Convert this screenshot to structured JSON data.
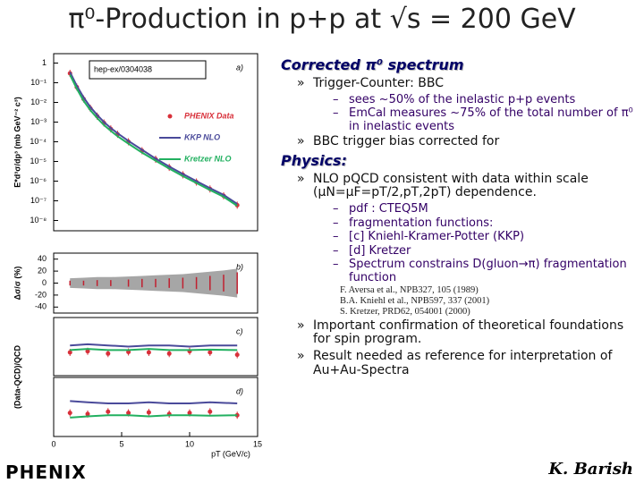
{
  "slide": {
    "title": "π⁰-Production in p+p at √s = 200 GeV",
    "sections": [
      {
        "heading": "Corrected π⁰ spectrum",
        "items": [
          {
            "text": "Trigger-Counter: BBC",
            "sub": [
              "sees ~50% of the inelastic p+p events",
              "EmCal measures ~75% of the total number of π⁰ in inelastic events"
            ]
          },
          {
            "text": "BBC trigger bias corrected for"
          }
        ]
      },
      {
        "heading": "Physics:",
        "items": [
          {
            "text": "NLO pQCD consistent with data within scale (μN=μF=pT/2,pT,2pT) dependence.",
            "sub": [
              "pdf : CTEQ5M",
              "fragmentation functions:",
              "[c] Kniehl-Kramer-Potter (KKP)",
              "[d] Kretzer",
              "Spectrum constrains D(gluon→π) fragmentation function"
            ]
          }
        ]
      }
    ],
    "references": [
      "F. Aversa et al., NPB327, 105 (1989)",
      "B.A. Kniehl et al., NPB597, 337 (2001)",
      "S. Kretzer, PRD62, 054001 (2000)"
    ],
    "closing": [
      "Important confirmation of theoretical foundations for spin program.",
      "Result needed as reference for interpretation of Au+Au-Spectra"
    ],
    "logo": "PHENIX",
    "author": "K. Barish"
  },
  "chart_data": [
    {
      "type": "line",
      "log_y": true,
      "ylabel": "E*d³σ/dp³ (mb GeV⁻² c³)",
      "annotations": [
        "a)",
        "hep-ex/0304038"
      ],
      "legend": "center right",
      "xlim": [
        0,
        15
      ],
      "ylim": [
        3e-09,
        3
      ],
      "yticks": [
        1,
        {
          "value": 0.1,
          "label": "10⁻¹"
        },
        {
          "value": 0.01,
          "label": "10⁻²"
        },
        {
          "value": 0.001,
          "label": "10⁻³"
        },
        {
          "value": 0.0001,
          "label": "10⁻⁴"
        },
        {
          "value": 1e-05,
          "label": "10⁻⁵"
        },
        {
          "value": 1e-06,
          "label": "10⁻⁶"
        },
        {
          "value": 1e-07,
          "label": "10⁻⁷"
        },
        {
          "value": 1e-08,
          "label": "10⁻⁸"
        }
      ],
      "x": [
        1.2,
        1.7,
        2.2,
        2.7,
        3.2,
        3.7,
        4.2,
        4.7,
        5.5,
        6.5,
        7.5,
        8.5,
        9.5,
        10.5,
        11.5,
        12.5,
        13.5
      ],
      "series": [
        {
          "name": "PHENIX Data",
          "mode": "markers",
          "color": "#d8303a",
          "values": [
            0.3,
            0.06,
            0.015,
            0.005,
            0.002,
            0.0009,
            0.00045,
            0.00024,
            0.0001,
            3.5e-05,
            1.3e-05,
            5e-06,
            2.1e-06,
            9e-07,
            4e-07,
            1.8e-07,
            6e-08
          ]
        },
        {
          "name": "KKP NLO",
          "mode": "line",
          "color": "#4a4a9a",
          "values": [
            0.35,
            0.07,
            0.018,
            0.0058,
            0.0023,
            0.001,
            0.0005,
            0.00027,
            0.00011,
            3.9e-05,
            1.4e-05,
            5.5e-06,
            2.3e-06,
            1e-06,
            4.4e-07,
            2e-07,
            7e-08
          ]
        },
        {
          "name": "Kretzer NLO",
          "mode": "line",
          "color": "#22b060",
          "values": [
            0.25,
            0.05,
            0.012,
            0.004,
            0.0016,
            0.0007,
            0.00036,
            0.00019,
            8e-05,
            2.8e-05,
            1.1e-05,
            4.3e-06,
            1.8e-06,
            8e-07,
            3.5e-07,
            1.6e-07,
            5.5e-08
          ]
        }
      ]
    },
    {
      "type": "band",
      "ylabel": "Δσ/σ (%)",
      "annotations": [
        "b)"
      ],
      "xlim": [
        0,
        15
      ],
      "ylim": [
        -50,
        50
      ],
      "yticks": [
        40,
        20,
        0,
        -20,
        -40
      ],
      "color": "#909090",
      "x": [
        1.2,
        2.2,
        3.2,
        4.2,
        5.5,
        6.5,
        7.5,
        8.5,
        9.5,
        10.5,
        11.5,
        12.5,
        13.5
      ],
      "upper": [
        8,
        9,
        10,
        10,
        11,
        12,
        13,
        14,
        15,
        17,
        19,
        21,
        24
      ],
      "lower": [
        -8,
        -9,
        -10,
        -10,
        -11,
        -12,
        -13,
        -14,
        -15,
        -17,
        -19,
        -21,
        -24
      ],
      "values": [
        0,
        0,
        0,
        0,
        0,
        0,
        0,
        0,
        0,
        0,
        0,
        0,
        0
      ],
      "errors": [
        4,
        4,
        5,
        5,
        6,
        7,
        7,
        8,
        9,
        10,
        12,
        14,
        18
      ]
    },
    {
      "type": "line",
      "ylabel": "(Data-QCD)/QCD",
      "annotations": [
        "c)"
      ],
      "xlim": [
        0,
        15
      ],
      "ylim": [
        -1,
        1.5
      ],
      "x": [
        1.2,
        2.5,
        4,
        5.5,
        7,
        8.5,
        10,
        11.5,
        13.5
      ],
      "series": [
        {
          "mode": "markers",
          "color": "#d8303a",
          "values": [
            0,
            0.05,
            -0.05,
            0.02,
            0,
            -0.05,
            0.05,
            0,
            -0.1
          ]
        },
        {
          "mode": "line",
          "color": "#4a4a9a",
          "values": [
            0.3,
            0.35,
            0.3,
            0.25,
            0.3,
            0.3,
            0.25,
            0.3,
            0.3
          ]
        },
        {
          "mode": "line",
          "color": "#22b060",
          "values": [
            0.1,
            0.15,
            0.1,
            0.1,
            0.15,
            0.1,
            0.1,
            0.12,
            0.1
          ]
        }
      ]
    },
    {
      "type": "line",
      "annotations": [
        "d)"
      ],
      "xlim": [
        0,
        15
      ],
      "ylim": [
        -1,
        1.5
      ],
      "xticks": [
        0,
        5,
        10,
        15
      ],
      "xlabel": "pT (GeV/c)",
      "x": [
        1.2,
        2.5,
        4,
        5.5,
        7,
        8.5,
        10,
        11.5,
        13.5
      ],
      "series": [
        {
          "mode": "markers",
          "color": "#d8303a",
          "values": [
            0,
            -0.05,
            0.05,
            0,
            0.02,
            -0.05,
            0,
            0.05,
            -0.1
          ]
        },
        {
          "mode": "line",
          "color": "#4a4a9a",
          "values": [
            0.5,
            0.45,
            0.4,
            0.4,
            0.45,
            0.4,
            0.4,
            0.45,
            0.4
          ]
        },
        {
          "mode": "line",
          "color": "#22b060",
          "values": [
            -0.2,
            -0.15,
            -0.1,
            -0.1,
            -0.15,
            -0.1,
            -0.1,
            -0.12,
            -0.1
          ]
        }
      ]
    }
  ]
}
